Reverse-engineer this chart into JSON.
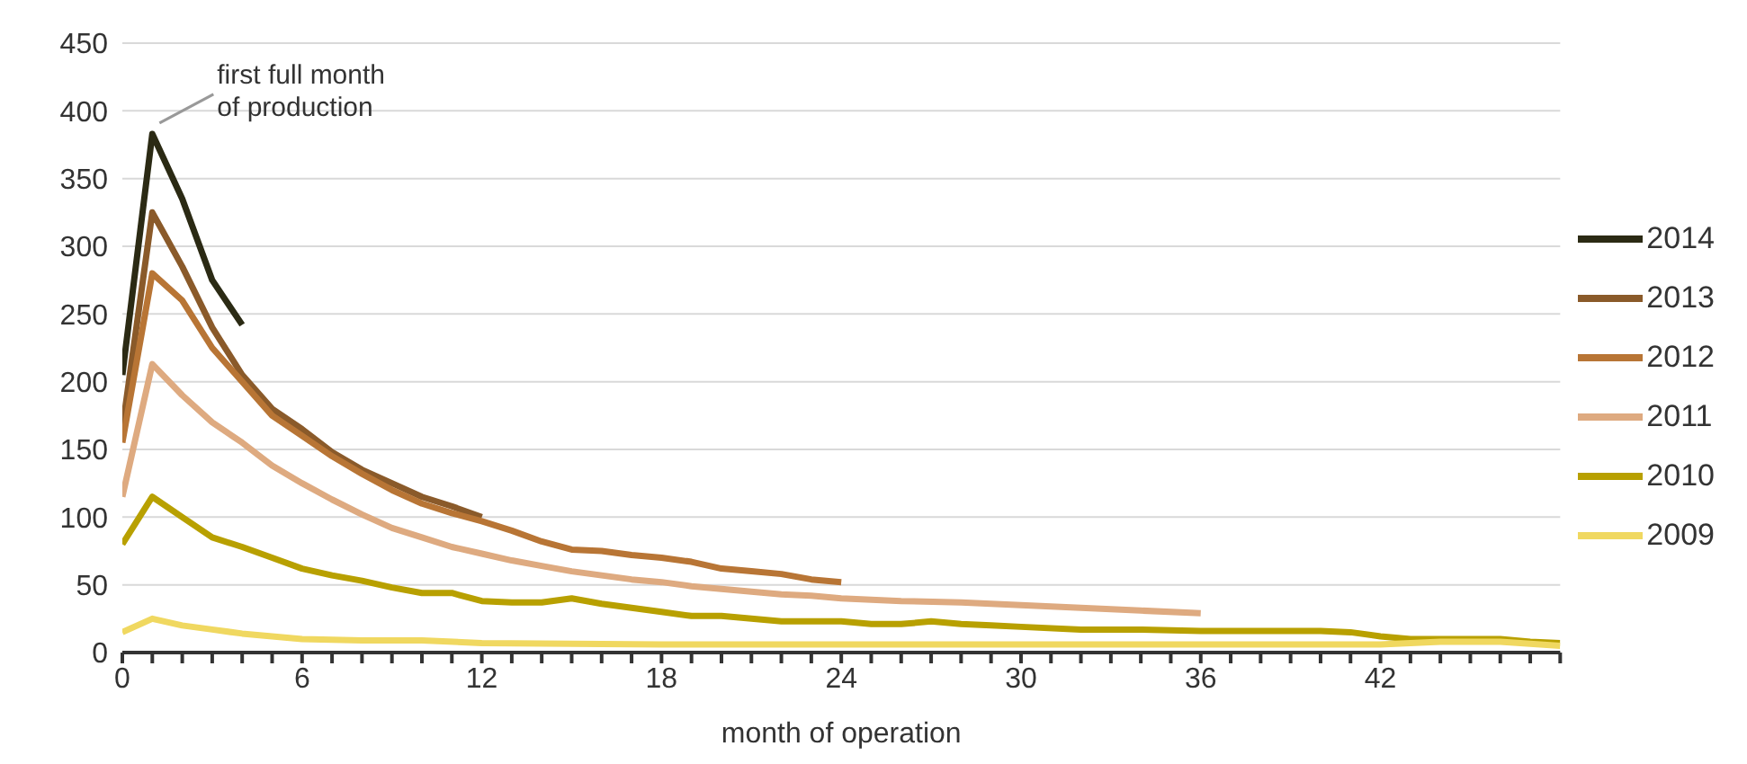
{
  "chart_data": {
    "type": "line",
    "xlabel": "month of operation",
    "xlim": [
      0,
      48
    ],
    "xticks": [
      0,
      {
        "value": 1,
        "label": null
      },
      {
        "value": 2,
        "label": null
      },
      {
        "value": 3,
        "label": null
      },
      {
        "value": 4,
        "label": null
      },
      {
        "value": 5,
        "label": null
      },
      6,
      {
        "value": 7,
        "label": null
      },
      {
        "value": 8,
        "label": null
      },
      {
        "value": 9,
        "label": null
      },
      {
        "value": 10,
        "label": null
      },
      {
        "value": 11,
        "label": null
      },
      12,
      {
        "value": 13,
        "label": null
      },
      {
        "value": 14,
        "label": null
      },
      {
        "value": 15,
        "label": null
      },
      {
        "value": 16,
        "label": null
      },
      {
        "value": 17,
        "label": null
      },
      18,
      {
        "value": 19,
        "label": null
      },
      {
        "value": 20,
        "label": null
      },
      {
        "value": 21,
        "label": null
      },
      {
        "value": 22,
        "label": null
      },
      {
        "value": 23,
        "label": null
      },
      24,
      {
        "value": 25,
        "label": null
      },
      {
        "value": 26,
        "label": null
      },
      {
        "value": 27,
        "label": null
      },
      {
        "value": 28,
        "label": null
      },
      {
        "value": 29,
        "label": null
      },
      30,
      {
        "value": 31,
        "label": null
      },
      {
        "value": 32,
        "label": null
      },
      {
        "value": 33,
        "label": null
      },
      {
        "value": 34,
        "label": null
      },
      {
        "value": 35,
        "label": null
      },
      36,
      {
        "value": 37,
        "label": null
      },
      {
        "value": 38,
        "label": null
      },
      {
        "value": 39,
        "label": null
      },
      {
        "value": 40,
        "label": null
      },
      {
        "value": 41,
        "label": null
      },
      42,
      {
        "value": 43,
        "label": null
      },
      {
        "value": 44,
        "label": null
      },
      {
        "value": 45,
        "label": null
      },
      {
        "value": 46,
        "label": null
      },
      {
        "value": 47,
        "label": null
      },
      {
        "value": 48,
        "label": null
      }
    ],
    "ylim": [
      0,
      450
    ],
    "yticks": [
      0,
      50,
      100,
      150,
      200,
      250,
      300,
      350,
      400,
      450
    ],
    "grid": "y",
    "legend": "right",
    "marker": "none",
    "line_style": "solid",
    "annotations": [
      {
        "text": "first full month of production",
        "x": 1,
        "y": 383
      }
    ],
    "series": [
      {
        "name": "2014",
        "color": "#2b2a14",
        "x": [
          0,
          1,
          2,
          3,
          4
        ],
        "values": [
          205,
          383,
          335,
          275,
          242
        ]
      },
      {
        "name": "2013",
        "color": "#8a5a2a",
        "x": [
          0,
          1,
          2,
          3,
          4,
          5,
          6,
          7,
          8,
          9,
          10,
          11,
          12
        ],
        "values": [
          165,
          325,
          285,
          240,
          205,
          180,
          165,
          148,
          135,
          125,
          115,
          108,
          100
        ]
      },
      {
        "name": "2012",
        "color": "#b87535",
        "x": [
          0,
          1,
          2,
          3,
          4,
          5,
          6,
          7,
          8,
          9,
          10,
          11,
          12,
          13,
          14,
          15,
          16,
          17,
          18,
          19,
          20,
          21,
          22,
          23,
          24
        ],
        "values": [
          155,
          280,
          260,
          225,
          200,
          175,
          160,
          145,
          132,
          120,
          110,
          103,
          97,
          90,
          82,
          76,
          75,
          72,
          70,
          67,
          62,
          60,
          58,
          54,
          52
        ]
      },
      {
        "name": "2011",
        "color": "#deaa80",
        "x": [
          0,
          1,
          2,
          3,
          4,
          5,
          6,
          7,
          8,
          9,
          10,
          11,
          12,
          13,
          14,
          15,
          16,
          17,
          18,
          19,
          20,
          21,
          22,
          23,
          24,
          26,
          28,
          30,
          32,
          34,
          36
        ],
        "values": [
          115,
          213,
          190,
          170,
          155,
          138,
          125,
          113,
          102,
          92,
          85,
          78,
          73,
          68,
          64,
          60,
          57,
          54,
          52,
          49,
          47,
          45,
          43,
          42,
          40,
          38,
          37,
          35,
          33,
          31,
          29
        ]
      },
      {
        "name": "2010",
        "color": "#b8a000",
        "x": [
          0,
          1,
          2,
          3,
          4,
          5,
          6,
          7,
          8,
          9,
          10,
          11,
          12,
          13,
          14,
          15,
          16,
          17,
          18,
          19,
          20,
          21,
          22,
          23,
          24,
          25,
          26,
          27,
          28,
          29,
          30,
          32,
          34,
          36,
          38,
          40,
          41,
          42,
          43,
          44,
          46,
          47,
          48
        ],
        "values": [
          80,
          115,
          100,
          85,
          78,
          70,
          62,
          57,
          53,
          48,
          44,
          44,
          38,
          37,
          37,
          40,
          36,
          33,
          30,
          27,
          27,
          25,
          23,
          23,
          23,
          21,
          21,
          23,
          21,
          20,
          19,
          17,
          17,
          16,
          16,
          16,
          15,
          12,
          10,
          10,
          10,
          8,
          7
        ]
      },
      {
        "name": "2009",
        "color": "#f0d860",
        "x": [
          0,
          1,
          2,
          3,
          4,
          5,
          6,
          8,
          10,
          12,
          18,
          24,
          30,
          36,
          42,
          44,
          46,
          48
        ],
        "values": [
          15,
          25,
          20,
          17,
          14,
          12,
          10,
          9,
          9,
          7,
          6,
          6,
          6,
          6,
          6,
          8,
          8,
          5
        ]
      }
    ]
  }
}
